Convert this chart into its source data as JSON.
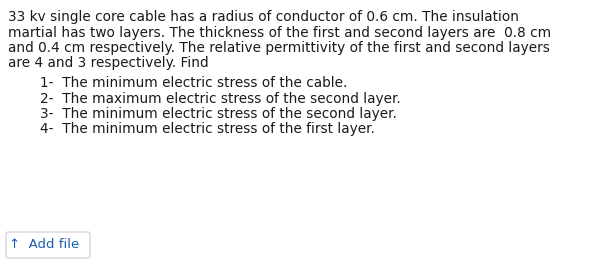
{
  "background_color": "#ffffff",
  "text_color": "#1a1a1a",
  "link_color": "#1a5fad",
  "border_color": "#cccccc",
  "paragraph_lines": [
    "33 kv single core cable has a radius of conductor of 0.6 cm. The insulation",
    "martial has two layers. The thickness of the first and second layers are  0.8 cm",
    "and 0.4 cm respectively. The relative permittivity of the first and second layers",
    "are 4 and 3 respectively. Find"
  ],
  "list_items": [
    "1-  The minimum electric stress of the cable.",
    "2-  The maximum electric stress of the second layer.",
    "3-  The minimum electric stress of the second layer.",
    "4-  The minimum electric stress of the first layer."
  ],
  "add_file_label": "↑  Add file",
  "font_size": 9.8,
  "font_size_add": 9.5,
  "font_name": "DejaVu Sans"
}
